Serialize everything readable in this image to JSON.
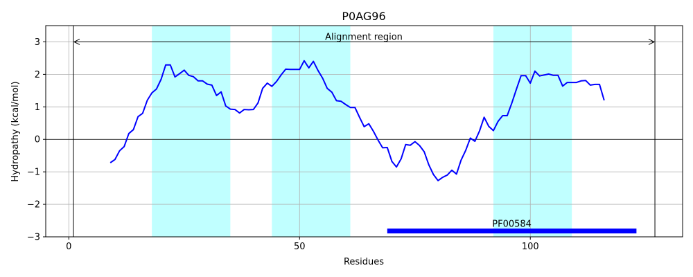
{
  "chart_data": {
    "type": "line",
    "title": "P0AG96",
    "xlabel": "Residues",
    "ylabel": "Hydropathy (kcal/mol)",
    "xlim": [
      -5,
      133
    ],
    "ylim": [
      -3,
      3.5
    ],
    "xticks": [
      0,
      50,
      100
    ],
    "yticks": [
      -3,
      -2,
      -1,
      0,
      1,
      2,
      3
    ],
    "grid": true,
    "series": [
      {
        "color": "#0000ff",
        "x": [
          9,
          10,
          11,
          12,
          13,
          14,
          15,
          16,
          17,
          18,
          19,
          20,
          21,
          22,
          23,
          24,
          25,
          26,
          27,
          28,
          29,
          30,
          31,
          32,
          33,
          34,
          35,
          36,
          37,
          38,
          39,
          40,
          41,
          42,
          43,
          44,
          45,
          46,
          47,
          48,
          49,
          50,
          51,
          52,
          53,
          54,
          55,
          56,
          57,
          58,
          59,
          60,
          61,
          62,
          63,
          64,
          65,
          66,
          67,
          68,
          69,
          70,
          71,
          72,
          73,
          74,
          75,
          76,
          77,
          78,
          79,
          80,
          81,
          82,
          83,
          84,
          85,
          86,
          87,
          88,
          89,
          90,
          91,
          92,
          93,
          94,
          95,
          96,
          97,
          98,
          99,
          100,
          101,
          102,
          103,
          104,
          105,
          106,
          107,
          108,
          109,
          110,
          111,
          112,
          113,
          114,
          115,
          116
        ],
        "y": [
          -0.72,
          -0.62,
          -0.35,
          -0.22,
          0.18,
          0.3,
          0.7,
          0.8,
          1.2,
          1.43,
          1.55,
          1.85,
          2.29,
          2.29,
          1.92,
          2.02,
          2.13,
          1.97,
          1.93,
          1.8,
          1.8,
          1.7,
          1.67,
          1.35,
          1.46,
          1.03,
          0.93,
          0.92,
          0.81,
          0.92,
          0.91,
          0.92,
          1.12,
          1.57,
          1.73,
          1.63,
          1.78,
          1.98,
          2.16,
          2.15,
          2.15,
          2.15,
          2.42,
          2.2,
          2.4,
          2.12,
          1.88,
          1.57,
          1.45,
          1.19,
          1.17,
          1.07,
          0.98,
          0.98,
          0.68,
          0.39,
          0.48,
          0.25,
          -0.02,
          -0.26,
          -0.25,
          -0.68,
          -0.85,
          -0.6,
          -0.16,
          -0.18,
          -0.07,
          -0.19,
          -0.38,
          -0.78,
          -1.08,
          -1.27,
          -1.17,
          -1.1,
          -0.95,
          -1.07,
          -0.64,
          -0.34,
          0.04,
          -0.06,
          0.26,
          0.68,
          0.4,
          0.27,
          0.55,
          0.73,
          0.73,
          1.12,
          1.55,
          1.96,
          1.96,
          1.73,
          2.1,
          1.95,
          1.98,
          2.01,
          1.97,
          1.97,
          1.64,
          1.75,
          1.75,
          1.75,
          1.8,
          1.81,
          1.67,
          1.69,
          1.69,
          1.2
        ]
      }
    ],
    "shaded_regions": [
      {
        "x_start": 18,
        "x_end": 35,
        "color": "#c0ffff"
      },
      {
        "x_start": 44,
        "x_end": 61,
        "color": "#c0ffff"
      },
      {
        "x_start": 92,
        "x_end": 109,
        "color": "#c0ffff"
      }
    ],
    "vlines": [
      1,
      127
    ],
    "alignment": {
      "label": "Alignment region",
      "y": 3,
      "x_start": 1,
      "x_end": 127
    },
    "domain_bar": {
      "label": "PF00584",
      "x_start": 69,
      "x_end": 123,
      "y": -2.82,
      "color": "#0000ff"
    }
  }
}
